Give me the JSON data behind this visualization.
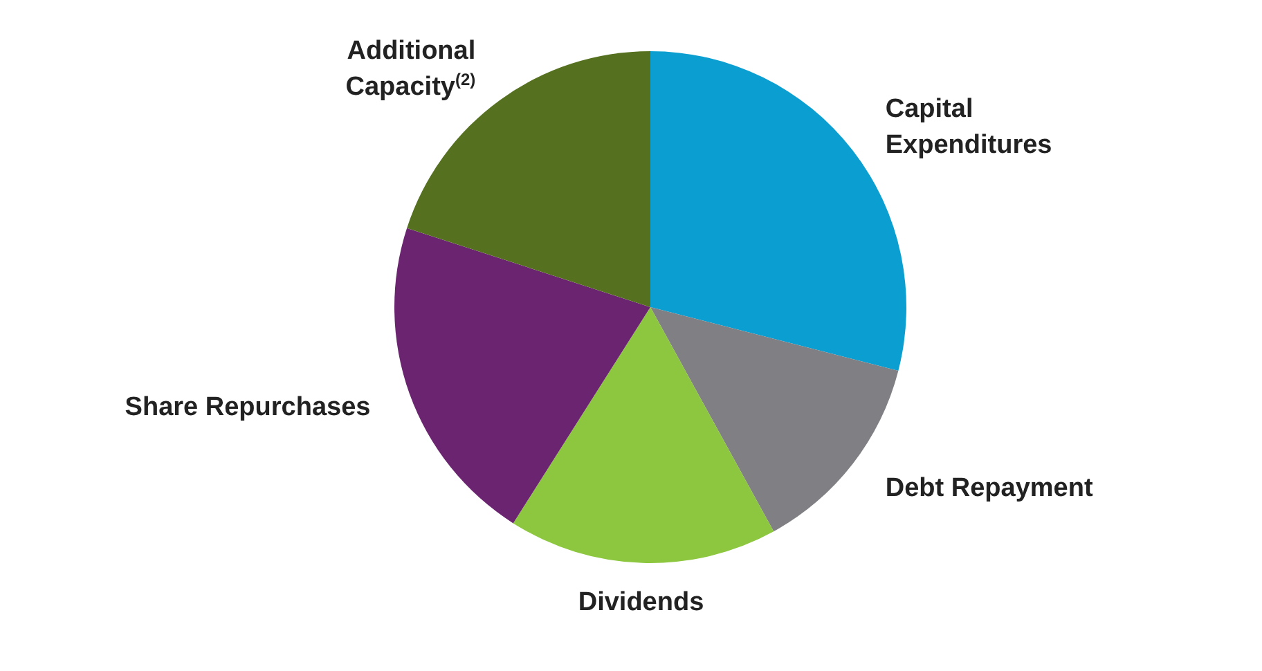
{
  "chart_data": {
    "type": "pie",
    "categories": [
      "Capital Expenditures",
      "Debt Repayment",
      "Dividends",
      "Share Repurchases",
      "Additional Capacity$^{(2)}$"
    ],
    "values": [
      29,
      13,
      17,
      21,
      20
    ],
    "colors": [
      "#0a9fd0",
      "#7f7f84",
      "#8dc63f",
      "#6b2470",
      "#55711f"
    ]
  }
}
